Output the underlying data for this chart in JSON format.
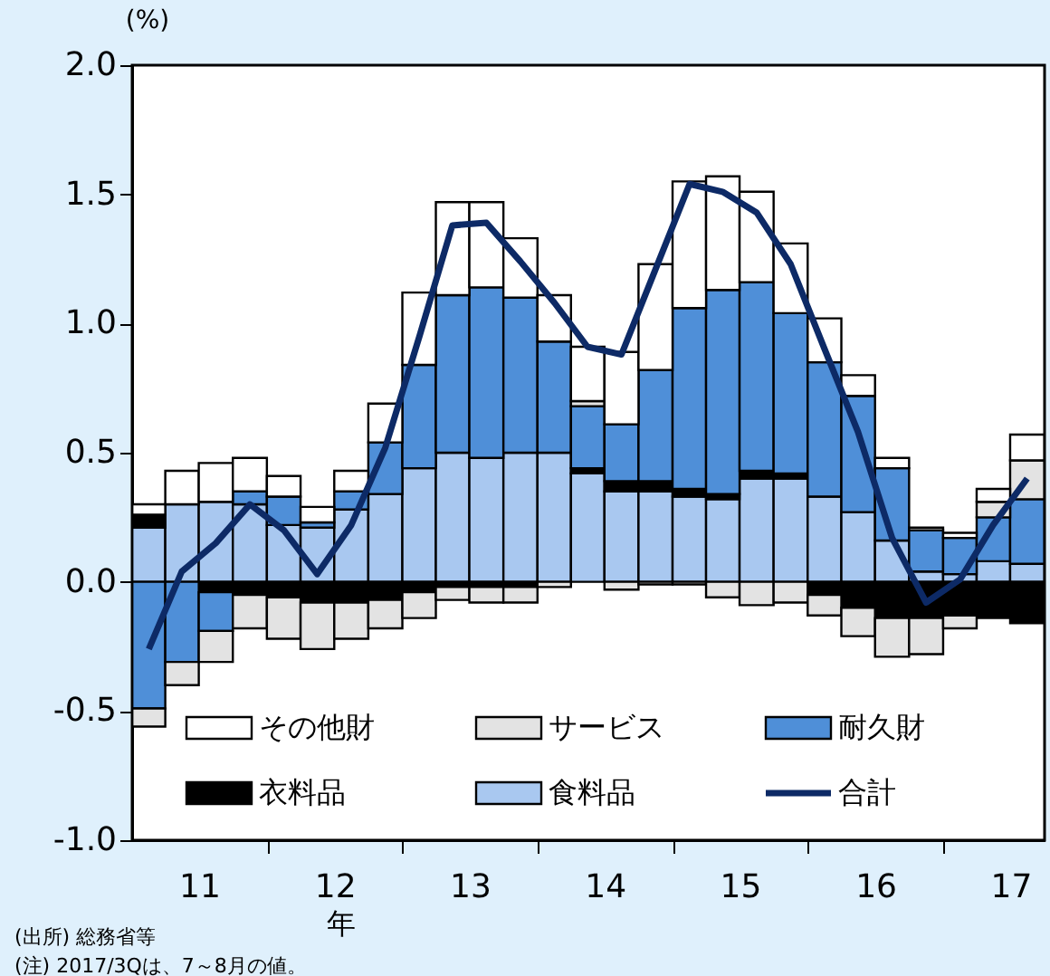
{
  "chart_data": {
    "type": "bar",
    "stacked": true,
    "ylabel": "(%)",
    "xlabel": "年",
    "x": [
      "2011-02-15",
      "2011-05-15",
      "2011-08-15",
      "2011-11-15",
      "2012-02-15",
      "2012-05-15",
      "2012-08-15",
      "2012-11-15",
      "2013-02-15",
      "2013-05-15",
      "2013-08-15",
      "2013-11-15",
      "2014-02-15",
      "2014-05-15",
      "2014-08-15",
      "2014-11-15",
      "2015-02-15",
      "2015-05-15",
      "2015-08-15",
      "2015-11-15",
      "2016-02-15",
      "2016-05-15",
      "2016-08-15",
      "2016-11-15",
      "2017-02-15",
      "2017-05-15",
      "2017-08-15"
    ],
    "series": [
      {
        "name": "食料品",
        "color": "#a9c8f0",
        "values": [
          0.21,
          0.3,
          0.31,
          0.3,
          0.22,
          0.21,
          0.28,
          0.34,
          0.44,
          0.5,
          0.48,
          0.5,
          0.5,
          0.42,
          0.35,
          0.35,
          0.33,
          0.32,
          0.4,
          0.4,
          0.33,
          0.27,
          0.16,
          0.04,
          0.03,
          0.08,
          0.07
        ]
      },
      {
        "name": "衣料品",
        "color": "#000000",
        "values": [
          0.05,
          null,
          -0.04,
          -0.05,
          -0.06,
          -0.08,
          -0.08,
          -0.07,
          -0.04,
          -0.02,
          -0.02,
          -0.02,
          null,
          0.02,
          0.04,
          0.04,
          0.03,
          0.02,
          0.03,
          0.02,
          -0.05,
          -0.1,
          -0.14,
          -0.14,
          -0.13,
          -0.14,
          -0.16
        ]
      },
      {
        "name": "耐久財",
        "color": "#4f8fd8",
        "values": [
          -0.49,
          -0.31,
          -0.15,
          0.05,
          0.11,
          0.02,
          0.07,
          0.2,
          0.4,
          0.61,
          0.66,
          0.6,
          0.43,
          0.24,
          0.22,
          0.43,
          0.7,
          0.79,
          0.73,
          0.62,
          0.52,
          0.45,
          0.28,
          0.16,
          0.14,
          0.17,
          0.25
        ]
      },
      {
        "name": "サービス",
        "color": "#e3e3e3",
        "values": [
          -0.07,
          -0.09,
          -0.12,
          -0.13,
          -0.16,
          -0.18,
          -0.14,
          -0.11,
          -0.1,
          -0.05,
          -0.06,
          -0.06,
          -0.02,
          0.02,
          -0.03,
          -0.01,
          -0.01,
          -0.06,
          -0.09,
          -0.08,
          -0.08,
          -0.11,
          -0.15,
          -0.14,
          -0.05,
          0.06,
          0.15
        ]
      },
      {
        "name": "その他財",
        "color": "#ffffff",
        "values": [
          0.04,
          0.13,
          0.15,
          0.13,
          0.08,
          0.06,
          0.08,
          0.15,
          0.28,
          0.36,
          0.33,
          0.23,
          0.18,
          0.21,
          0.28,
          0.41,
          0.49,
          0.44,
          0.35,
          0.27,
          0.17,
          0.08,
          0.04,
          0.01,
          0.02,
          0.05,
          0.1
        ]
      },
      {
        "name": "合計",
        "type": "line",
        "color": "#0d2a66",
        "values": [
          -0.26,
          0.04,
          0.15,
          0.3,
          0.2,
          0.03,
          0.22,
          0.52,
          0.95,
          1.38,
          1.39,
          1.24,
          1.08,
          0.91,
          0.88,
          1.21,
          1.54,
          1.51,
          1.43,
          1.23,
          0.9,
          0.58,
          0.17,
          -0.08,
          0.01,
          0.22,
          0.4
        ]
      }
    ],
    "xlim": [
      "2011-01-01",
      "2017-10-01"
    ],
    "xticks": [
      {
        "value": "2011-07-01",
        "label": "11"
      },
      {
        "value": "2012-01-01",
        "label": null
      },
      {
        "value": "2012-07-01",
        "label": "12"
      },
      {
        "value": "2013-01-01",
        "label": null
      },
      {
        "value": "2013-07-01",
        "label": "13"
      },
      {
        "value": "2014-01-01",
        "label": null
      },
      {
        "value": "2014-07-01",
        "label": "14"
      },
      {
        "value": "2015-01-01",
        "label": null
      },
      {
        "value": "2015-07-01",
        "label": "15"
      },
      {
        "value": "2016-01-01",
        "label": null
      },
      {
        "value": "2016-07-01",
        "label": "16"
      },
      {
        "value": "2017-01-01",
        "label": null
      },
      {
        "value": "2017-07-01",
        "label": "17"
      }
    ],
    "ylim": [
      -1,
      2
    ],
    "yticks": [
      {
        "value": -1,
        "label": "-1.0"
      },
      {
        "value": -0.5,
        "label": "-0.5"
      },
      {
        "value": 0,
        "label": "0.0"
      },
      {
        "value": 0.5,
        "label": "0.5"
      },
      {
        "value": 1,
        "label": "1.0"
      },
      {
        "value": 1.5,
        "label": "1.5"
      },
      {
        "value": 2,
        "label": "2.0"
      }
    ],
    "grid": false,
    "legend": "bottom",
    "annotations": [
      "(出所) 総務省等",
      "(注) 2017/3Qは、7～8月の値。"
    ]
  }
}
